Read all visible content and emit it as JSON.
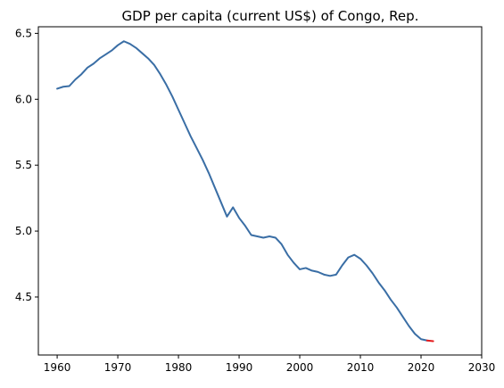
{
  "chart_data": {
    "type": "line",
    "title": "GDP per capita (current US$) of Congo, Rep.",
    "xlabel": "",
    "ylabel": "",
    "xlim": [
      1956.9,
      2030
    ],
    "ylim": [
      4.06,
      6.55
    ],
    "x_ticks": [
      1960,
      1970,
      1980,
      1990,
      2000,
      2010,
      2020,
      2030
    ],
    "y_ticks": [
      4.5,
      5.0,
      5.5,
      6.0,
      6.5
    ],
    "x_tick_labels": [
      "1960",
      "1970",
      "1980",
      "1990",
      "2000",
      "2010",
      "2020",
      "2030"
    ],
    "y_tick_labels": [
      "4.5",
      "5.0",
      "5.5",
      "6.0",
      "6.5"
    ],
    "grid": false,
    "series": [
      {
        "color": "#3a6ea5",
        "x": [
          1960,
          1961,
          1962,
          1963,
          1964,
          1965,
          1966,
          1967,
          1968,
          1969,
          1970,
          1971,
          1972,
          1973,
          1974,
          1975,
          1976,
          1977,
          1978,
          1979,
          1980,
          1981,
          1982,
          1983,
          1984,
          1985,
          1986,
          1987,
          1988,
          1989,
          1990,
          1991,
          1992,
          1993,
          1994,
          1995,
          1996,
          1997,
          1998,
          1999,
          2000,
          2001,
          2002,
          2003,
          2004,
          2005,
          2006,
          2007,
          2008,
          2009,
          2010,
          2011,
          2012,
          2013,
          2014,
          2015,
          2016,
          2017,
          2018,
          2019,
          2020,
          2021
        ],
        "y": [
          6.08,
          6.095,
          6.1,
          6.15,
          6.19,
          6.24,
          6.27,
          6.31,
          6.34,
          6.37,
          6.41,
          6.44,
          6.42,
          6.39,
          6.35,
          6.31,
          6.26,
          6.19,
          6.11,
          6.02,
          5.92,
          5.82,
          5.72,
          5.63,
          5.54,
          5.44,
          5.33,
          5.22,
          5.11,
          5.18,
          5.1,
          5.04,
          4.97,
          4.96,
          4.95,
          4.96,
          4.95,
          4.9,
          4.82,
          4.76,
          4.71,
          4.72,
          4.7,
          4.69,
          4.67,
          4.66,
          4.67,
          4.74,
          4.8,
          4.82,
          4.79,
          4.74,
          4.68,
          4.61,
          4.55,
          4.48,
          4.42,
          4.35,
          4.28,
          4.22,
          4.18,
          4.17
        ]
      },
      {
        "color": "#e41a1c",
        "x": [
          2021,
          2022
        ],
        "y": [
          4.17,
          4.165
        ]
      }
    ]
  }
}
